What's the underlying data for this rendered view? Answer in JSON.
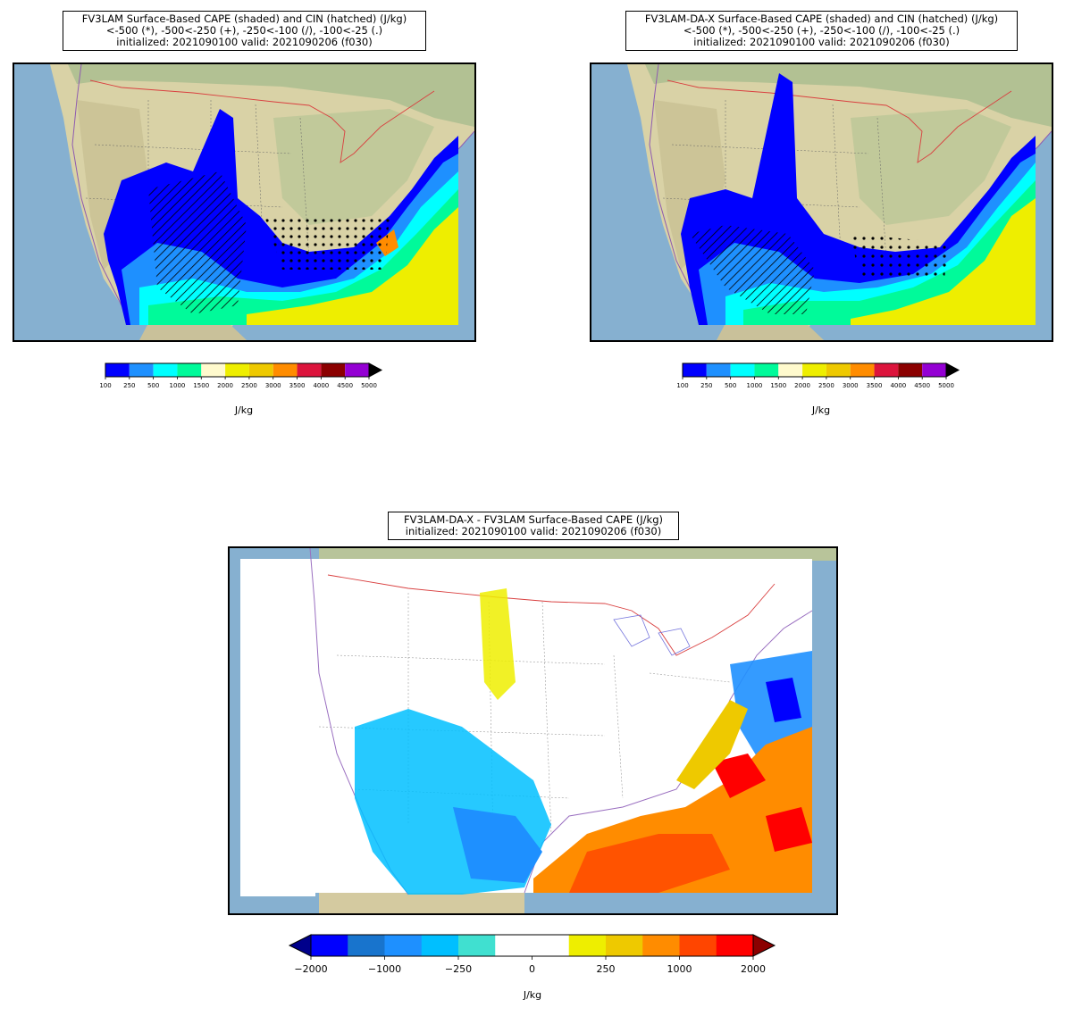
{
  "panels": [
    {
      "id": "fv3lam",
      "title_lines": [
        "FV3LAM Surface-Based CAPE (shaded) and CIN (hatched) (J/kg)",
        "<-500 (*), -500<-250 (+), -250<-100 (/), -100<-25 (.)",
        "initialized: 2021090100 valid: 2021090206 (f030)"
      ],
      "colorbar": {
        "bounds": [
          "100",
          "250",
          "500",
          "1000",
          "1500",
          "2000",
          "2500",
          "3000",
          "3500",
          "4000",
          "4500",
          "5000"
        ],
        "colors": [
          "#0000ff",
          "#1e90ff",
          "#00ffff",
          "#00fa9a",
          "#fffacd",
          "#eeee00",
          "#eec900",
          "#ff8c00",
          "#dc143c",
          "#8b0000",
          "#9400d3"
        ],
        "extend_color": "#000000",
        "label": "J/kg"
      }
    },
    {
      "id": "fv3lam-da-x",
      "title_lines": [
        "FV3LAM-DA-X Surface-Based CAPE (shaded) and CIN (hatched) (J/kg)",
        "<-500 (*), -500<-250 (+), -250<-100 (/), -100<-25 (.)",
        "initialized: 2021090100 valid: 2021090206 (f030)"
      ],
      "colorbar": {
        "bounds": [
          "100",
          "250",
          "500",
          "1000",
          "1500",
          "2000",
          "2500",
          "3000",
          "3500",
          "4000",
          "4500",
          "5000"
        ],
        "colors": [
          "#0000ff",
          "#1e90ff",
          "#00ffff",
          "#00fa9a",
          "#fffacd",
          "#eeee00",
          "#eec900",
          "#ff8c00",
          "#dc143c",
          "#8b0000",
          "#9400d3"
        ],
        "extend_color": "#000000",
        "label": "J/kg"
      }
    },
    {
      "id": "difference",
      "title_lines": [
        "FV3LAM-DA-X - FV3LAM Surface-Based CAPE (J/kg)",
        "initialized: 2021090100 valid: 2021090206 (f030)"
      ],
      "colorbar": {
        "tick_labels": [
          "−2000",
          "−1000",
          "−250",
          "0",
          "250",
          "1000",
          "2000"
        ],
        "colors": [
          "#0000ff",
          "#1874cd",
          "#1e90ff",
          "#00bfff",
          "#40e0d0",
          "#ffffff",
          "#ffffff",
          "#eeee00",
          "#eec900",
          "#ff8c00",
          "#ff4500",
          "#ff0000"
        ],
        "extend_low_color": "#00008b",
        "extend_high_color": "#8b0000",
        "label": "J/kg"
      }
    }
  ]
}
